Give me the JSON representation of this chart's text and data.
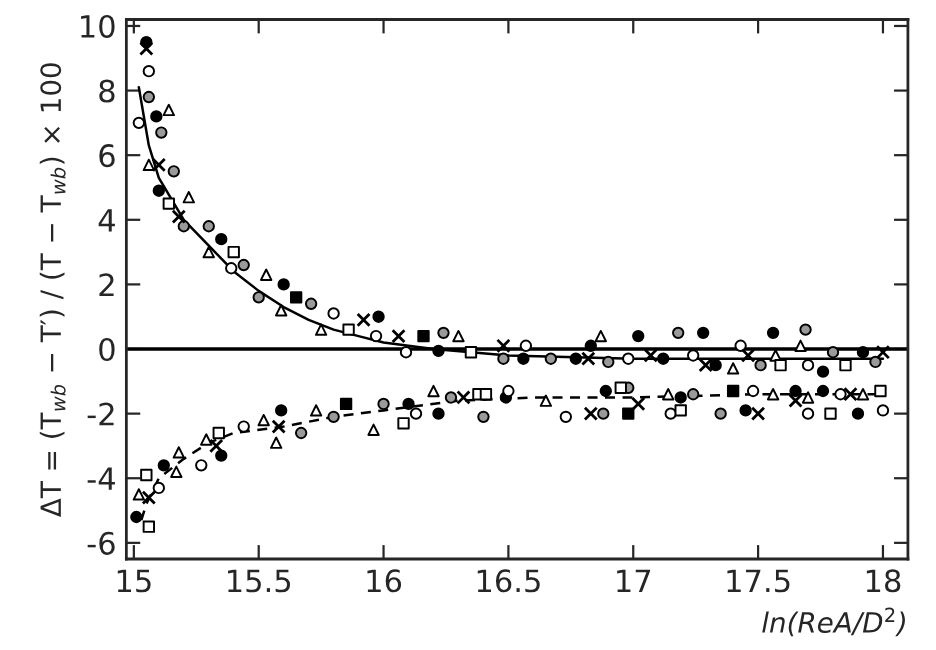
{
  "chart_data": {
    "type": "scatter",
    "xlabel": "ln(ReA/D$^{2}$)",
    "ylabel": "ΔT = (T$_{wb}$ − T′) / (T − T$_{wb}$) × 100",
    "xlim": [
      14.97,
      18.1
    ],
    "ylim": [
      -6.5,
      10.2
    ],
    "xticks": [
      15,
      15.5,
      16,
      16.5,
      17,
      17.5,
      18
    ],
    "yticks": [
      -6,
      -4,
      -2,
      0,
      2,
      4,
      6,
      8,
      10
    ],
    "grid": false,
    "legend": false,
    "ref_lines": [
      {
        "axis": "y",
        "value": 0,
        "color": "#000000",
        "line_style": "solid"
      }
    ],
    "series": [
      {
        "marker": "circle",
        "color": "#000000",
        "x": [
          15.05,
          15.09,
          15.1,
          15.35,
          15.6,
          15.98,
          16.22,
          15.59,
          15.35,
          15.12,
          15.01,
          16.1,
          16.22,
          16.83,
          17.02,
          17.28,
          17.56,
          16.56,
          16.77,
          17.12,
          17.33,
          17.76,
          17.92,
          16.49,
          16.89,
          17.19,
          17.45,
          17.65,
          17.76,
          17.9
        ],
        "values": [
          9.5,
          7.2,
          4.9,
          3.4,
          2.0,
          1.0,
          -0.06,
          -1.9,
          -3.3,
          -3.6,
          -5.2,
          -1.7,
          -2.0,
          0.1,
          0.4,
          0.5,
          0.5,
          -0.3,
          -0.3,
          -0.3,
          -0.5,
          -0.7,
          -0.1,
          -1.5,
          -1.3,
          -1.5,
          -1.9,
          -1.3,
          -1.3,
          -2.0
        ]
      },
      {
        "marker": "circle",
        "color": "#ffffff",
        "x": [
          15.06,
          15.02,
          15.39,
          15.8,
          15.97,
          16.09,
          15.1,
          15.27,
          15.44,
          16.13,
          16.57,
          17.43,
          16.98,
          17.24,
          17.7,
          16.5,
          16.73,
          17.15,
          17.48,
          17.7,
          17.83,
          18.0
        ],
        "values": [
          8.6,
          7.0,
          2.5,
          1.1,
          0.4,
          -0.1,
          -4.3,
          -3.6,
          -2.4,
          -2.0,
          0.1,
          0.1,
          -0.3,
          -0.2,
          -0.5,
          -1.3,
          -2.1,
          -2.0,
          -1.3,
          -2.0,
          -1.4,
          -1.9
        ]
      },
      {
        "marker": "circle",
        "color": "#9a9a9a",
        "x": [
          15.06,
          15.11,
          15.16,
          15.2,
          15.3,
          15.44,
          15.5,
          15.71,
          16.24,
          15.67,
          15.8,
          16.0,
          16.27,
          17.18,
          17.69,
          16.48,
          16.67,
          16.9,
          17.51,
          17.8,
          17.97,
          16.4,
          16.98,
          16.88,
          17.24,
          17.35
        ],
        "values": [
          7.8,
          6.7,
          5.5,
          3.8,
          3.8,
          2.6,
          1.6,
          1.4,
          0.5,
          -2.6,
          -2.1,
          -1.7,
          -1.5,
          0.5,
          0.6,
          -0.3,
          -0.3,
          -0.4,
          -0.5,
          -0.1,
          -0.4,
          -2.1,
          -1.2,
          -2.0,
          -1.4,
          -2.0
        ]
      },
      {
        "marker": "triangle",
        "color": "#ffffff",
        "x": [
          15.14,
          15.06,
          15.22,
          15.3,
          15.53,
          15.59,
          15.75,
          16.3,
          15.02,
          15.18,
          15.17,
          15.29,
          15.52,
          15.57,
          15.73,
          15.96,
          16.2,
          16.87,
          17.67,
          17.4,
          17.57,
          16.65,
          17.14,
          17.56,
          17.7,
          17.92
        ],
        "values": [
          7.4,
          5.7,
          4.7,
          3.0,
          2.3,
          1.2,
          0.6,
          0.4,
          -4.5,
          -3.2,
          -3.8,
          -2.8,
          -2.2,
          -2.9,
          -1.9,
          -2.5,
          -1.3,
          0.4,
          0.1,
          -0.6,
          -0.2,
          -1.6,
          -1.4,
          -1.4,
          -1.5,
          -1.4
        ]
      },
      {
        "marker": "cross",
        "color": "#000000",
        "x": [
          15.05,
          15.1,
          15.18,
          15.92,
          15.06,
          15.33,
          15.58,
          16.06,
          16.32,
          16.48,
          16.82,
          17.07,
          17.29,
          17.46,
          18.0,
          17.02,
          16.83,
          17.5,
          17.65,
          17.87
        ],
        "values": [
          9.3,
          5.7,
          4.1,
          0.9,
          -4.6,
          -3.0,
          -2.4,
          0.4,
          -1.5,
          0.1,
          -0.3,
          -0.2,
          -0.5,
          -0.2,
          -0.1,
          -1.7,
          -2.0,
          -2.0,
          -1.6,
          -1.4
        ]
      },
      {
        "marker": "square",
        "color": "#ffffff",
        "x": [
          15.14,
          15.4,
          15.86,
          15.05,
          15.06,
          15.34,
          16.08,
          16.38,
          16.35,
          17.59,
          17.85,
          16.41,
          16.95,
          17.19,
          17.79,
          17.99
        ],
        "values": [
          4.5,
          3.0,
          0.6,
          -3.9,
          -5.5,
          -2.6,
          -2.3,
          -1.4,
          -0.1,
          -0.5,
          -0.5,
          -1.4,
          -1.2,
          -1.9,
          -2.0,
          -1.3
        ]
      },
      {
        "marker": "square",
        "color": "#000000",
        "x": [
          15.65,
          16.16,
          15.85,
          16.98,
          17.4
        ],
        "values": [
          1.6,
          0.4,
          -1.7,
          -2.0,
          -1.3
        ]
      },
      {
        "type": "line",
        "line_style": "solid",
        "marker": "none",
        "color": "#000000",
        "x": [
          15.02,
          15.06,
          15.1,
          15.2,
          15.3,
          15.4,
          15.5,
          15.6,
          15.7,
          15.8,
          15.9,
          16.0,
          16.2,
          16.5,
          17.0,
          17.5,
          18.0
        ],
        "values": [
          8.1,
          6.3,
          5.3,
          4.0,
          3.2,
          2.4,
          1.8,
          1.3,
          0.9,
          0.6,
          0.4,
          0.2,
          0.0,
          -0.2,
          -0.3,
          -0.3,
          -0.3
        ]
      },
      {
        "type": "line",
        "line_style": "dashed",
        "marker": "none",
        "color": "#000000",
        "x": [
          15.03,
          15.05,
          15.1,
          15.2,
          15.3,
          15.4,
          15.6,
          15.8,
          16.0,
          16.3,
          16.6,
          17.0,
          17.5,
          18.0
        ],
        "values": [
          -5.3,
          -4.8,
          -4.0,
          -3.4,
          -2.9,
          -2.6,
          -2.4,
          -2.1,
          -1.9,
          -1.6,
          -1.5,
          -1.5,
          -1.4,
          -1.4
        ]
      }
    ]
  }
}
